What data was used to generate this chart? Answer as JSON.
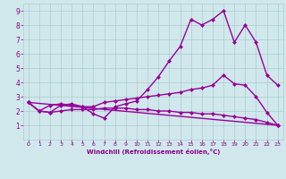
{
  "background_color": "#d0e8ec",
  "line_color": "#990099",
  "grid_color": "#aacccc",
  "xlabel": "Windchill (Refroidissement éolien,°C)",
  "xlabel_color": "#880088",
  "tick_color": "#880088",
  "xlim": [
    -0.5,
    23.5
  ],
  "ylim": [
    0,
    9.5
  ],
  "xticks": [
    0,
    1,
    2,
    3,
    4,
    5,
    6,
    7,
    8,
    9,
    10,
    11,
    12,
    13,
    14,
    15,
    16,
    17,
    18,
    19,
    20,
    21,
    22,
    23
  ],
  "yticks": [
    1,
    2,
    3,
    4,
    5,
    6,
    7,
    8,
    9
  ],
  "curve1_x": [
    0,
    1,
    2,
    3,
    4,
    5,
    6,
    7,
    8,
    9,
    10,
    11,
    12,
    13,
    14,
    15,
    16,
    17,
    18,
    19,
    20,
    21,
    22,
    23
  ],
  "curve1_y": [
    2.6,
    2.0,
    1.9,
    2.4,
    2.5,
    2.3,
    1.8,
    1.5,
    2.3,
    2.5,
    2.7,
    3.5,
    4.4,
    5.5,
    6.5,
    8.4,
    8.0,
    8.4,
    9.0,
    6.8,
    8.0,
    6.8,
    4.5,
    3.8
  ],
  "curve2_x": [
    0,
    1,
    2,
    3,
    4,
    5,
    6,
    7,
    8,
    9,
    10,
    11,
    12,
    13,
    14,
    15,
    16,
    17,
    18,
    19,
    20,
    21,
    22,
    23
  ],
  "curve2_y": [
    2.6,
    2.0,
    2.4,
    2.5,
    2.4,
    2.3,
    2.3,
    2.6,
    2.7,
    2.8,
    2.9,
    3.0,
    3.1,
    3.2,
    3.3,
    3.5,
    3.6,
    3.8,
    4.5,
    3.9,
    3.8,
    3.0,
    1.9,
    1.0
  ],
  "curve3_x": [
    0,
    1,
    2,
    3,
    4,
    5,
    6,
    7,
    8,
    9,
    10,
    11,
    12,
    13,
    14,
    15,
    16,
    17,
    18,
    19,
    20,
    21,
    22,
    23
  ],
  "curve3_y": [
    2.6,
    2.0,
    1.9,
    2.0,
    2.1,
    2.1,
    2.1,
    2.2,
    2.2,
    2.2,
    2.1,
    2.1,
    2.0,
    2.0,
    1.9,
    1.9,
    1.8,
    1.8,
    1.7,
    1.6,
    1.5,
    1.4,
    1.2,
    1.0
  ],
  "curve4_x": [
    0,
    23
  ],
  "curve4_y": [
    2.6,
    1.0
  ],
  "markersize": 2.5,
  "linewidth": 1.0
}
